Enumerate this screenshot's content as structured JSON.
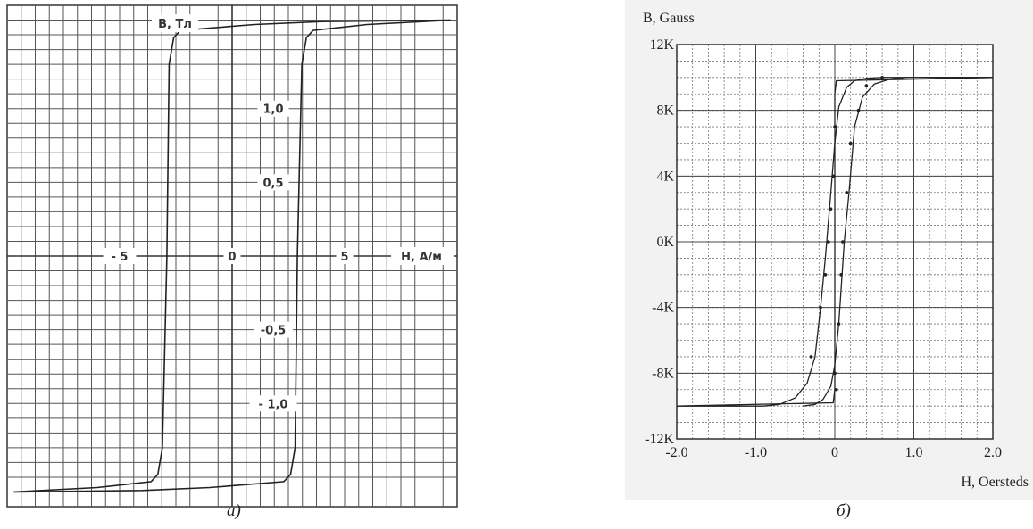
{
  "captions": {
    "a": "а)",
    "b": "б)"
  },
  "chart_data": [
    {
      "type": "line",
      "ylabel": "В, Тл",
      "xlabel": "Н, А/м",
      "xlim": [
        -10,
        10
      ],
      "ylim": [
        -1.7,
        1.7
      ],
      "x_tick_labels": [
        {
          "value": -5,
          "label": "- 5"
        },
        {
          "value": 0,
          "label": "0"
        },
        {
          "value": 5,
          "label": "5"
        }
      ],
      "y_tick_labels": [
        {
          "value": 1.0,
          "label": "1,0"
        },
        {
          "value": 0.5,
          "label": "0,5"
        },
        {
          "value": -0.5,
          "label": "-0,5"
        },
        {
          "value": -1.0,
          "label": "- 1,0"
        }
      ],
      "grid": true,
      "series": [
        {
          "x": [
            -9.7,
            -6.0,
            -3.6,
            -3.3,
            -3.1,
            -2.9,
            -2.8,
            -2.6,
            -2.3,
            1.0,
            4.0,
            9.7
          ],
          "y": [
            -1.6,
            -1.57,
            -1.53,
            -1.48,
            -1.3,
            0.0,
            1.3,
            1.48,
            1.53,
            1.57,
            1.59,
            1.6
          ]
        },
        {
          "x": [
            9.7,
            6.0,
            3.6,
            3.3,
            3.1,
            2.9,
            2.8,
            2.6,
            2.3,
            -1.0,
            -4.0,
            -9.7
          ],
          "y": [
            1.6,
            1.57,
            1.53,
            1.48,
            1.3,
            0.0,
            -1.3,
            -1.48,
            -1.53,
            -1.57,
            -1.59,
            -1.6
          ]
        }
      ]
    },
    {
      "type": "line",
      "ylabel": "B, Gauss",
      "xlabel": "H, Oersteds",
      "xlim": [
        -2.0,
        2.0
      ],
      "ylim": [
        -12000,
        12000
      ],
      "x_tick_labels": [
        "-2.0",
        "-1.0",
        "0",
        "1.0",
        "2.0"
      ],
      "x_ticks": [
        -2.0,
        -1.0,
        0,
        1.0,
        2.0
      ],
      "y_tick_labels": [
        "12K",
        "8K",
        "4K",
        "0K",
        "-4K",
        "-8K",
        "-12K"
      ],
      "y_ticks": [
        12000,
        8000,
        4000,
        0,
        -4000,
        -8000,
        -12000
      ],
      "grid": true,
      "series": [
        {
          "x": [
            -2.0,
            -0.9,
            -0.7,
            -0.5,
            -0.35,
            -0.25,
            -0.18,
            -0.12,
            -0.05,
            0.0,
            0.05,
            0.15,
            0.25,
            0.4,
            0.6,
            0.8,
            1.0,
            2.0
          ],
          "y": [
            -10000,
            -10000,
            -9900,
            -9500,
            -8600,
            -7000,
            -4000,
            -1000,
            3000,
            6000,
            8200,
            9400,
            9800,
            9950,
            10000,
            10000,
            10000,
            10000
          ]
        },
        {
          "x": [
            2.0,
            0.9,
            0.7,
            0.5,
            0.35,
            0.25,
            0.18,
            0.12,
            0.05,
            0.0,
            -0.05,
            -0.15,
            -0.25,
            -0.4
          ],
          "y": [
            10000,
            10000,
            9900,
            9600,
            8800,
            7000,
            3000,
            0,
            -5000,
            -7500,
            -8800,
            -9600,
            -9900,
            -10000
          ]
        },
        {
          "x": [
            -2.0,
            -0.02,
            0.0,
            0.0,
            0.02,
            2.0
          ],
          "y": [
            -10000,
            -9800,
            -9000,
            9000,
            9800,
            10000
          ]
        }
      ],
      "markers": {
        "x": [
          -0.3,
          -0.18,
          -0.12,
          -0.08,
          -0.05,
          -0.02,
          0.0,
          0.0,
          0.02,
          0.05,
          0.08,
          0.1,
          0.15,
          0.2,
          0.3,
          0.4,
          0.6
        ],
        "y": [
          -7000,
          -4000,
          -2000,
          0,
          2000,
          4000,
          7000,
          -8000,
          -9000,
          -5000,
          -2000,
          0,
          3000,
          6000,
          8000,
          9500,
          10000
        ]
      }
    }
  ]
}
